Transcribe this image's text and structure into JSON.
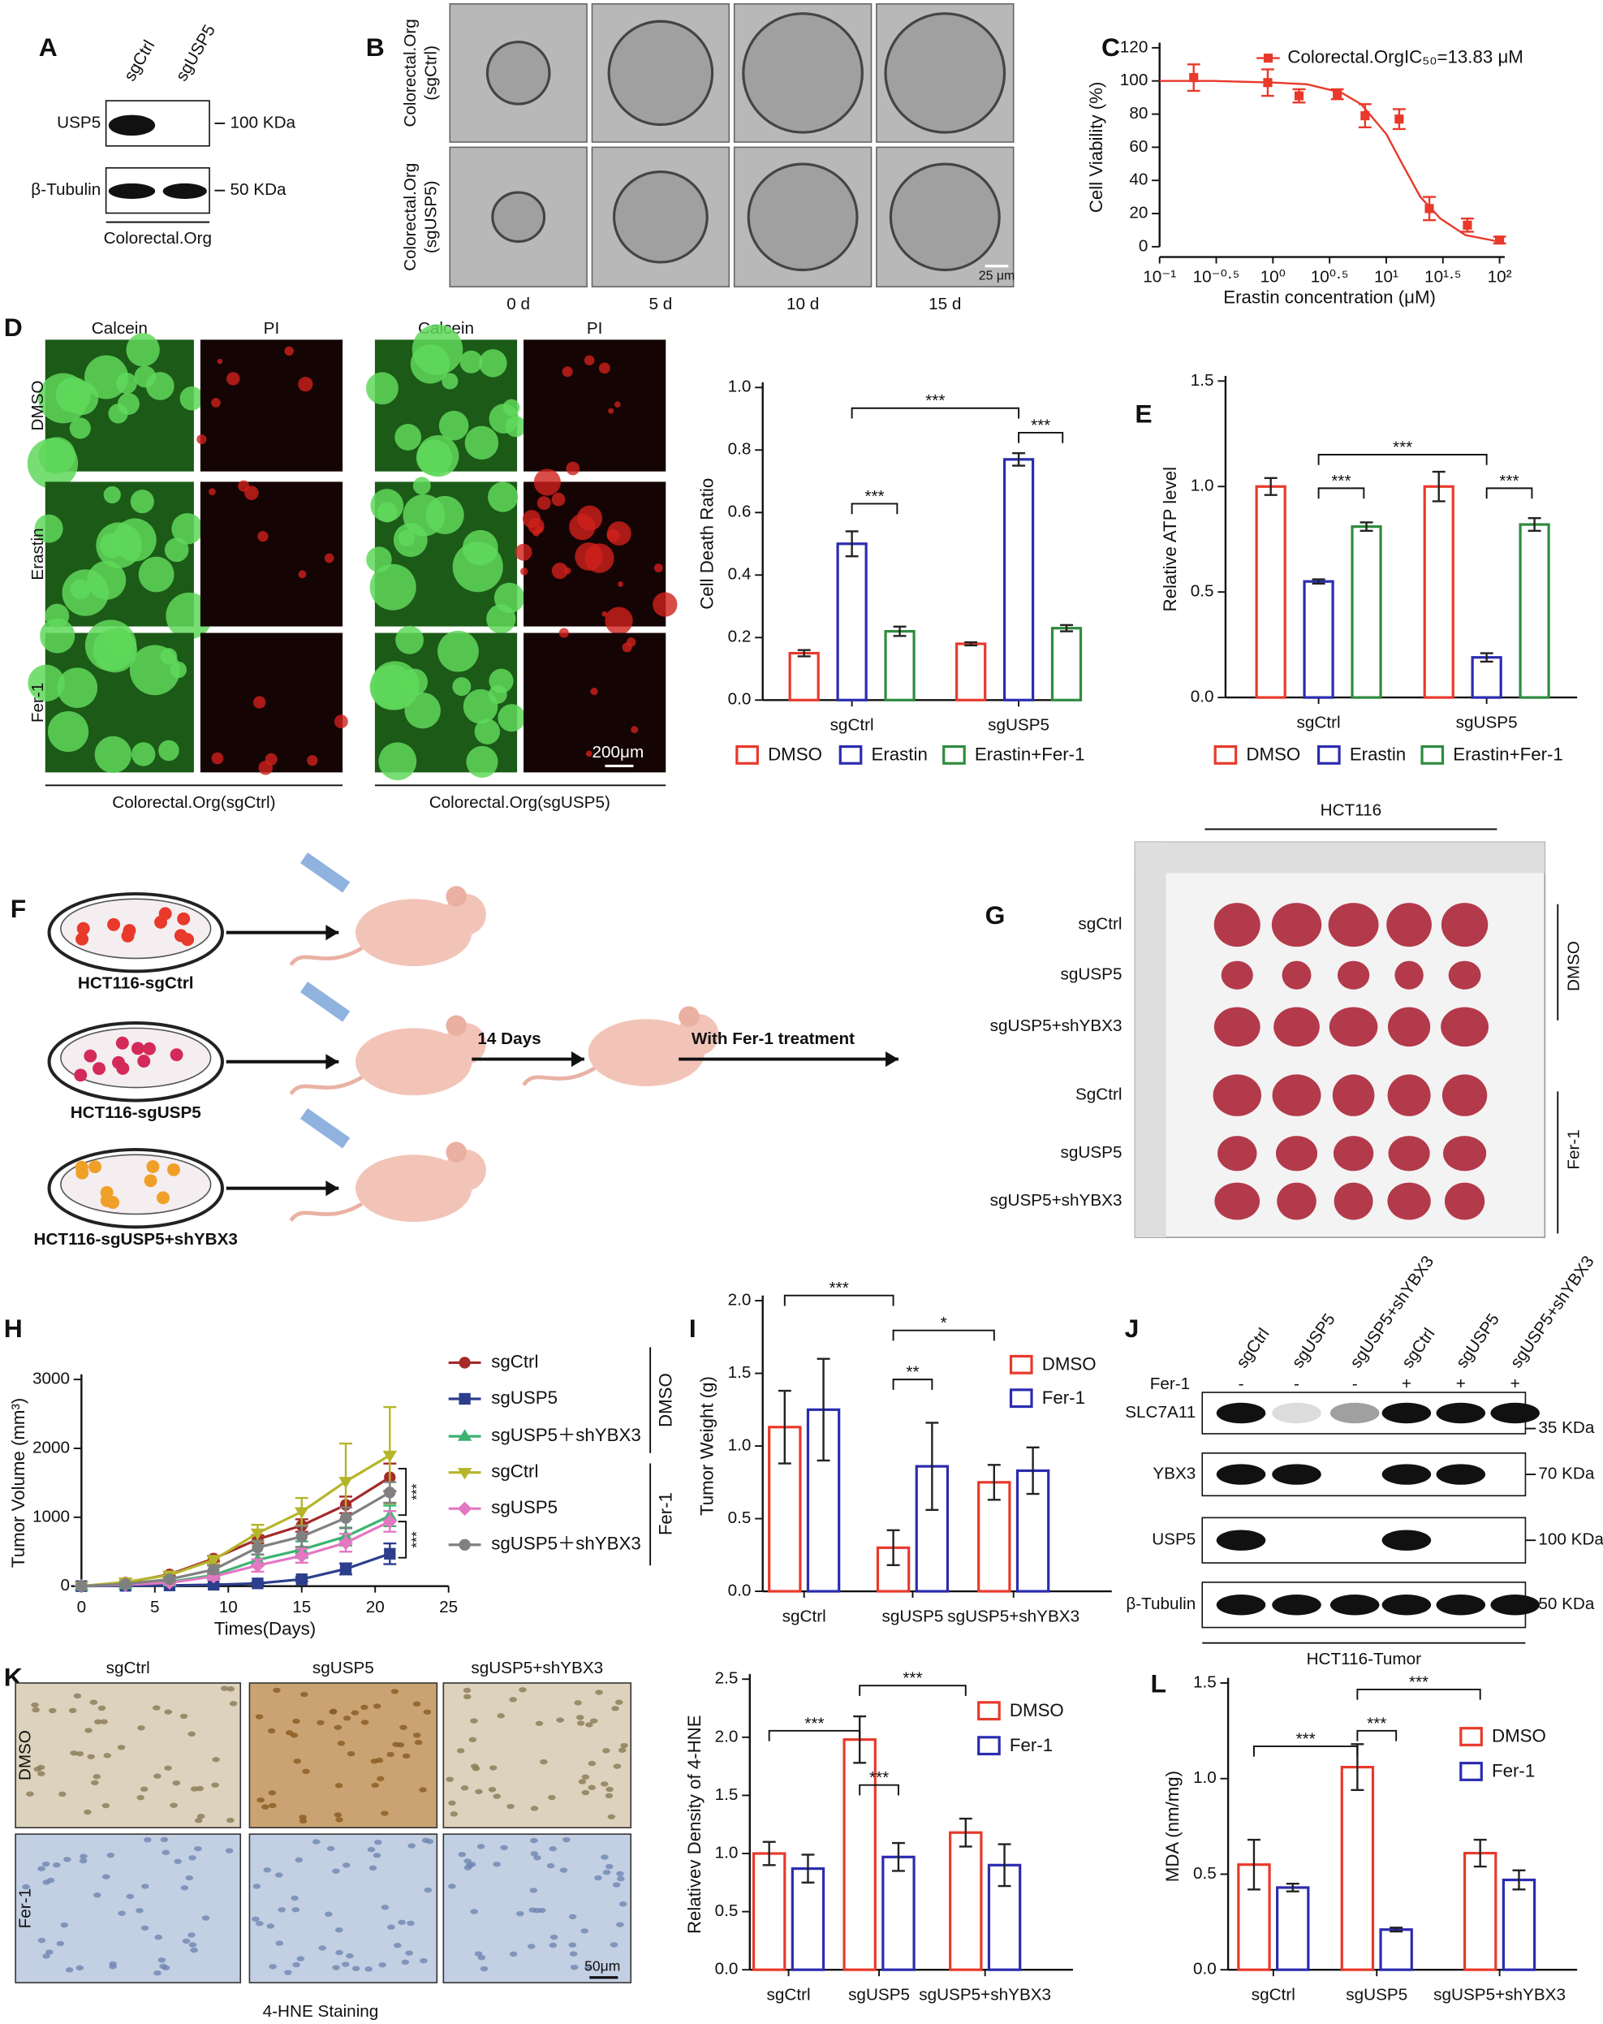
{
  "panel_labels": [
    "A",
    "B",
    "C",
    "D",
    "E",
    "F",
    "G",
    "H",
    "I",
    "J",
    "K",
    "L"
  ],
  "blot_a": {
    "lanes": [
      "sgCtrl",
      "sgUSP5"
    ],
    "rows": [
      "USP5",
      "β-Tubulin"
    ],
    "sizes": [
      "100 KDa",
      "50 KDa"
    ],
    "caption": "Colorectal.Org"
  },
  "organoids_b": {
    "rows": [
      [
        "Colorectal.Org",
        "(sgCtrl)"
      ],
      [
        "Colorectal.Org",
        "(sgUSP5)"
      ]
    ],
    "columns": [
      "0 d",
      "5 d",
      "10 d",
      "15 d"
    ],
    "scale": "25 μm"
  },
  "staining_d": {
    "columns": [
      "Calcein",
      "PI",
      "Calcein",
      "PI"
    ],
    "rows": [
      "DMSO",
      "Erastin",
      "Fer-1"
    ],
    "captions": [
      "Colorectal.Org(sgCtrl)",
      "Colorectal.Org(sgUSP5)"
    ],
    "scale": "200μm"
  },
  "scheme_f": {
    "groups": [
      "HCT116-sgCtrl",
      "HCT116-sgUSP5",
      "HCT116-sgUSP5+shYBX3"
    ],
    "interval": "14 Days",
    "treatment": "With Fer-1 treatment"
  },
  "photo_g": {
    "title": "HCT116",
    "rows": [
      "sgCtrl",
      "sgUSP5",
      "sgUSP5+shYBX3",
      "SgCtrl",
      "sgUSP5",
      "sgUSP5+shYBX3"
    ],
    "groups": [
      "DMSO",
      "Fer-1"
    ]
  },
  "blot_j": {
    "lanes": [
      "sgCtrl",
      "sgUSP5",
      "sgUSP5+shYBX3",
      "sgCtrl",
      "sgUSP5",
      "sgUSP5+shYBX3"
    ],
    "treatment": "Fer-1",
    "signs": [
      "-",
      "-",
      "-",
      "+",
      "+",
      "+"
    ],
    "rows": [
      "SLC7A11",
      "YBX3",
      "USP5",
      "β-Tubulin"
    ],
    "sizes": [
      "35 KDa",
      "70 KDa",
      "100 KDa",
      "50 KDa"
    ],
    "caption": "HCT116-Tumor"
  },
  "ihc_k": {
    "columns": [
      "sgCtrl",
      "sgUSP5",
      "sgUSP5+shYBX3"
    ],
    "rows": [
      "DMSO",
      "Fer-1"
    ],
    "scale": "50μm",
    "caption": "4-HNE Staining"
  },
  "chart_data": [
    {
      "type": "scatter",
      "x_label": "Erastin concentration (μM)",
      "y_label": "Cell Viability (%)",
      "xscale": "log",
      "xlim": [
        0.1,
        100
      ],
      "xticks": [
        {
          "value": 0.1,
          "label": "10⁻¹"
        },
        {
          "value": 0.3162,
          "label": "10⁻⁰·⁵"
        },
        {
          "value": 1,
          "label": "10⁰"
        },
        {
          "value": 3.162,
          "label": "10⁰·⁵"
        },
        {
          "value": 10,
          "label": "10¹"
        },
        {
          "value": 31.62,
          "label": "10¹·⁵"
        },
        {
          "value": 100,
          "label": "10²"
        }
      ],
      "ylim": [
        0,
        120
      ],
      "yticks": [
        0,
        20,
        40,
        60,
        80,
        100,
        120
      ],
      "series": [
        {
          "name": "Colorectal.OrgIC₅₀=13.83 μM",
          "color": "#e8392b",
          "x": [
            0.2,
            0.9,
            1.7,
            3.7,
            6.5,
            13,
            24,
            52,
            100
          ],
          "values": [
            102,
            99,
            91,
            92,
            79,
            77,
            23,
            13,
            4
          ],
          "errors": [
            8,
            8,
            4,
            3,
            7,
            6,
            7,
            4,
            2
          ],
          "fit_x": [
            0.1,
            0.3,
            1,
            2,
            4,
            6,
            10,
            13.83,
            20,
            30,
            50,
            100
          ],
          "fit_values": [
            100,
            100,
            99,
            98,
            93,
            86,
            68,
            50,
            30,
            17,
            7,
            3
          ]
        }
      ]
    },
    {
      "type": "bar",
      "y_label": "Cell Death Ratio",
      "legend": "bottom",
      "categories": [
        "sgCtrl",
        "sgUSP5"
      ],
      "ylim": [
        0,
        1
      ],
      "yticks": [
        {
          "value": 0,
          "label": "0.0"
        },
        0.2,
        0.4,
        0.6,
        0.8,
        {
          "value": 1,
          "label": "1.0"
        }
      ],
      "series": [
        {
          "name": "DMSO",
          "color": "#e8392b",
          "values": [
            0.15,
            0.18
          ],
          "errors": [
            0.01,
            0.005
          ]
        },
        {
          "name": "Erastin",
          "color": "#2b2bb0",
          "values": [
            0.5,
            0.77
          ],
          "errors": [
            0.04,
            0.02
          ]
        },
        {
          "name": "Erastin+Fer-1",
          "color": "#2e8b3e",
          "values": [
            0.22,
            0.23
          ],
          "errors": [
            0.015,
            0.01
          ]
        }
      ],
      "annotations": [
        "***",
        "***",
        "***"
      ]
    },
    {
      "type": "bar",
      "y_label": "Relative ATP level",
      "legend": "bottom",
      "categories": [
        "sgCtrl",
        "sgUSP5"
      ],
      "ylim": [
        0,
        1.5
      ],
      "yticks": [
        {
          "value": 0,
          "label": "0.0"
        },
        0.5,
        {
          "value": 1,
          "label": "1.0"
        },
        1.5
      ],
      "series": [
        {
          "name": "DMSO",
          "color": "#e8392b",
          "values": [
            1.0,
            1.0
          ],
          "errors": [
            0.04,
            0.07
          ]
        },
        {
          "name": "Erastin",
          "color": "#2b2bb0",
          "values": [
            0.55,
            0.19
          ],
          "errors": [
            0.01,
            0.02
          ]
        },
        {
          "name": "Erastin+Fer-1",
          "color": "#2e8b3e",
          "values": [
            0.81,
            0.82
          ],
          "errors": [
            0.02,
            0.03
          ]
        }
      ],
      "annotations": [
        "***",
        "***",
        "***"
      ]
    },
    {
      "type": "line",
      "x_label": "Times(Days)",
      "y_label": "Tumor Volume (mm³)",
      "legend": "right",
      "x": [
        0,
        3,
        6,
        9,
        12,
        15,
        18,
        21
      ],
      "xlim": [
        0,
        25
      ],
      "xticks": [
        0,
        5,
        10,
        15,
        20,
        25
      ],
      "ylim": [
        0,
        3000
      ],
      "yticks": [
        0,
        1000,
        2000,
        3000
      ],
      "series": [
        {
          "name": "sgCtrl",
          "color": "#a52a2a",
          "marker": "circle",
          "values": [
            0,
            50,
            170,
            400,
            680,
            880,
            1180,
            1580
          ],
          "errors": [
            0,
            20,
            30,
            40,
            60,
            90,
            120,
            200
          ]
        },
        {
          "name": "sgUSP5",
          "color": "#2c3e8c",
          "marker": "square",
          "values": [
            0,
            5,
            10,
            20,
            40,
            100,
            250,
            470
          ],
          "errors": [
            0,
            5,
            5,
            10,
            15,
            30,
            80,
            150
          ]
        },
        {
          "name": "sgUSP5＋shYBX3",
          "color": "#3cb371",
          "marker": "triangle",
          "values": [
            0,
            20,
            60,
            160,
            380,
            530,
            720,
            1020
          ],
          "errors": [
            0,
            10,
            20,
            40,
            80,
            120,
            130,
            150
          ]
        },
        {
          "name": "sgCtrl",
          "color": "#b5b52a",
          "marker": "triangle-down",
          "values": [
            0,
            60,
            160,
            380,
            770,
            1080,
            1520,
            1900
          ],
          "errors": [
            0,
            20,
            40,
            60,
            120,
            200,
            550,
            700
          ]
        },
        {
          "name": "sgUSP5",
          "color": "#e377c2",
          "marker": "diamond",
          "values": [
            0,
            20,
            50,
            140,
            300,
            440,
            630,
            940
          ],
          "errors": [
            0,
            10,
            20,
            50,
            90,
            100,
            130,
            150
          ]
        },
        {
          "name": "sgUSP5＋shYBX3",
          "color": "#808080",
          "marker": "circle",
          "values": [
            0,
            30,
            100,
            240,
            560,
            720,
            990,
            1360
          ],
          "errors": [
            0,
            15,
            30,
            60,
            100,
            150,
            150,
            150
          ]
        }
      ],
      "legend_groups": [
        "DMSO",
        "Fer-1"
      ],
      "annotations": [
        "***",
        "***"
      ]
    },
    {
      "type": "bar",
      "y_label": "Tumor Weight (g)",
      "legend": "upper right",
      "categories": [
        "sgCtrl",
        "sgUSP5",
        "sgUSP5+shYBX3"
      ],
      "ylim": [
        0,
        2
      ],
      "yticks": [
        {
          "value": 0,
          "label": "0.0"
        },
        0.5,
        {
          "value": 1,
          "label": "1.0"
        },
        1.5,
        {
          "value": 2,
          "label": "2.0"
        }
      ],
      "series": [
        {
          "name": "DMSO",
          "color": "#e8392b",
          "values": [
            1.13,
            0.3,
            0.75
          ],
          "errors": [
            0.25,
            0.12,
            0.12
          ]
        },
        {
          "name": "Fer-1",
          "color": "#2b2bb0",
          "values": [
            1.25,
            0.86,
            0.83
          ],
          "errors": [
            0.35,
            0.3,
            0.16
          ]
        }
      ],
      "annotations": [
        "***",
        "**",
        "*"
      ]
    },
    {
      "type": "bar",
      "y_label": "Relativev Density of 4-HNE",
      "legend": "upper right",
      "categories": [
        "sgCtrl",
        "sgUSP5",
        "sgUSP5+shYBX3"
      ],
      "ylim": [
        0,
        2.5
      ],
      "yticks": [
        {
          "value": 0,
          "label": "0.0"
        },
        0.5,
        {
          "value": 1,
          "label": "1.0"
        },
        1.5,
        {
          "value": 2,
          "label": "2.0"
        },
        2.5
      ],
      "series": [
        {
          "name": "DMSO",
          "color": "#e8392b",
          "values": [
            1.0,
            1.98,
            1.18
          ],
          "errors": [
            0.1,
            0.2,
            0.12
          ]
        },
        {
          "name": "Fer-1",
          "color": "#2b2bb0",
          "values": [
            0.87,
            0.97,
            0.9
          ],
          "errors": [
            0.12,
            0.12,
            0.18
          ]
        }
      ],
      "annotations": [
        "***",
        "***",
        "***"
      ]
    },
    {
      "type": "bar",
      "y_label": "MDA (nm/mg)",
      "legend": "upper right",
      "categories": [
        "sgCtrl",
        "sgUSP5",
        "sgUSP5+shYBX3"
      ],
      "ylim": [
        0,
        1.5
      ],
      "yticks": [
        {
          "value": 0,
          "label": "0.0"
        },
        0.5,
        {
          "value": 1,
          "label": "1.0"
        },
        1.5
      ],
      "series": [
        {
          "name": "DMSO",
          "color": "#e8392b",
          "values": [
            0.55,
            1.06,
            0.61
          ],
          "errors": [
            0.13,
            0.12,
            0.07
          ]
        },
        {
          "name": "Fer-1",
          "color": "#2b2bb0",
          "values": [
            0.43,
            0.21,
            0.47
          ],
          "errors": [
            0.02,
            0.01,
            0.05
          ]
        }
      ],
      "annotations": [
        "***",
        "***",
        "***"
      ]
    }
  ]
}
